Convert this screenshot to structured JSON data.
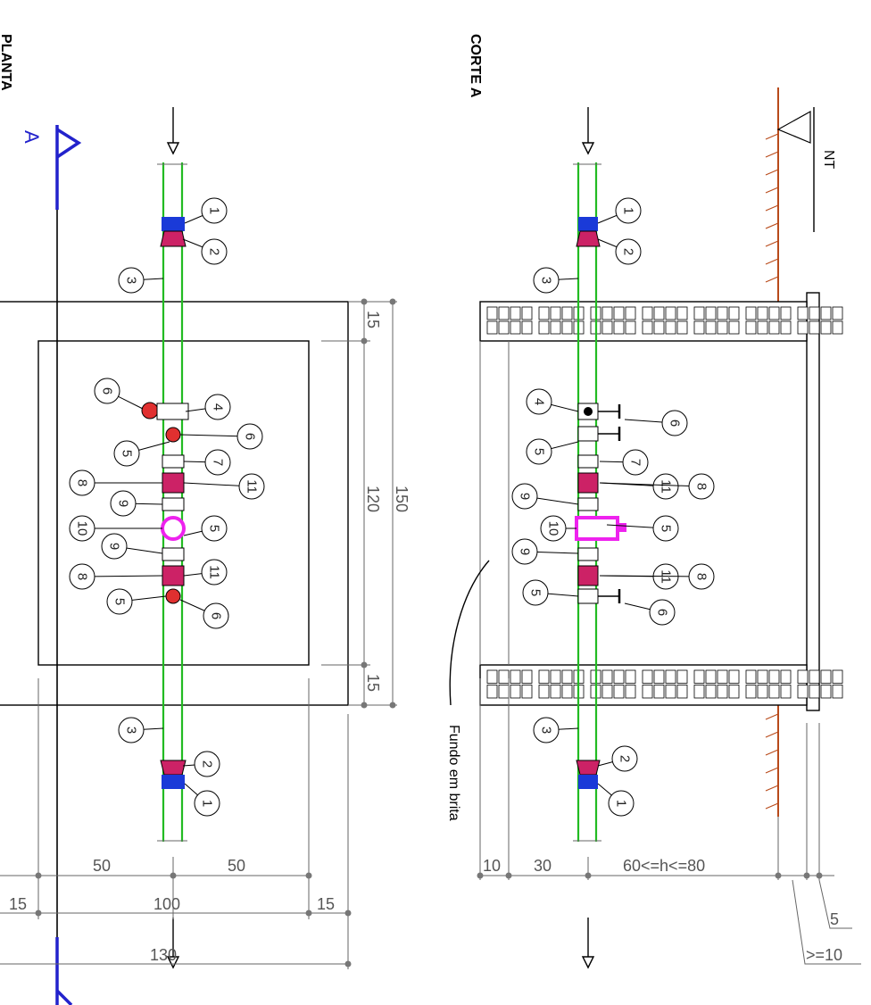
{
  "views": {
    "plan_title": "PLANTA",
    "section_title": "CORTE A",
    "section_marker": "A",
    "terrain_label": "NT",
    "bottom_note": "Fundo em brita"
  },
  "plan_dims": {
    "outer_length": "150",
    "inner_length": "120",
    "wall_left": "15",
    "wall_right": "15",
    "half_a": "50",
    "half_b": "50",
    "side_a": "15",
    "side_b": "15",
    "inner_width": "100",
    "outer_width": "130"
  },
  "section_dims": {
    "gravel": "10",
    "to_axis": "30",
    "depth": "60<=h<=80",
    "slab": "5",
    "cover": ">=10"
  },
  "plan_balloons": [
    "1",
    "2",
    "3",
    "6",
    "4",
    "6",
    "5",
    "7",
    "11",
    "8",
    "9",
    "10",
    "5",
    "9",
    "11",
    "8",
    "5",
    "6",
    "3",
    "2",
    "1"
  ],
  "section_balloons": [
    "1",
    "2",
    "3",
    "4",
    "6",
    "5",
    "7",
    "11",
    "8",
    "9",
    "10",
    "5",
    "9",
    "11",
    "8",
    "5",
    "6",
    "3",
    "2",
    "1"
  ],
  "colors": {
    "pipe": "#22bb22",
    "coupling": "#1a3ad8",
    "valve_red": "#e03030",
    "filter_magenta": "#ee22ee",
    "section_mark": "#2222cc",
    "soil": "#b84a1a"
  }
}
